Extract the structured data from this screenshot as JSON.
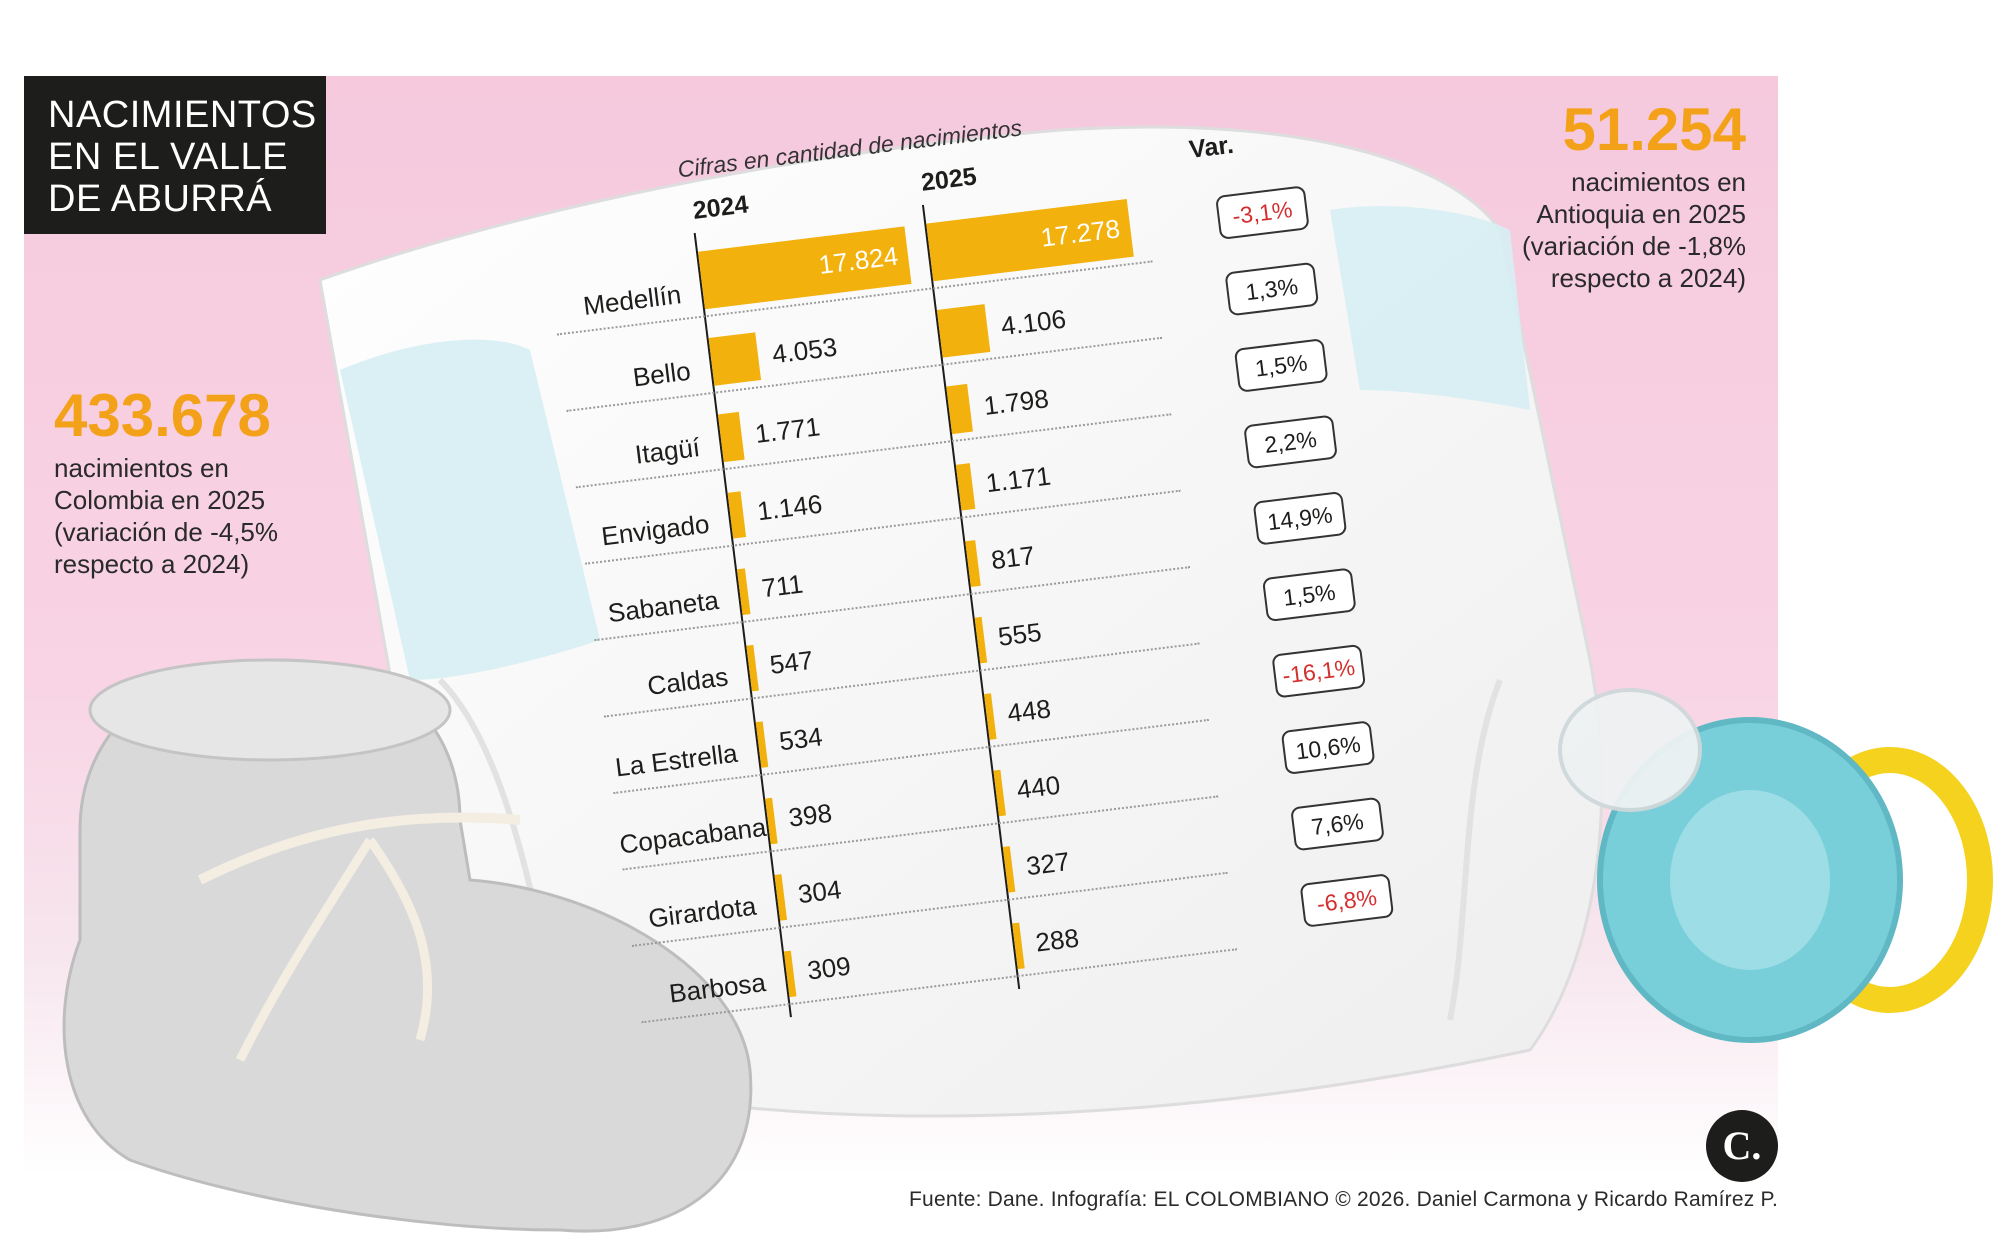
{
  "title": {
    "lines": [
      "NACIMIENTOS",
      "EN EL VALLE",
      "DE ABURRÁ"
    ]
  },
  "left_stat": {
    "value": "433.678",
    "lines": [
      "nacimientos en",
      "Colombia en 2025",
      "(variación de -4,5%",
      "respecto a 2024)"
    ]
  },
  "right_stat": {
    "value": "51.254",
    "lines": [
      "nacimientos en",
      "Antioquia en 2025",
      "(variación de -1,8%",
      "respecto a 2024)"
    ]
  },
  "chart_data": {
    "type": "bar",
    "caption": "Cifras en cantidad de nacimientos",
    "categories": [
      "Medellín",
      "Bello",
      "Itagüí",
      "Envigado",
      "Sabaneta",
      "Caldas",
      "La Estrella",
      "Copacabana",
      "Girardota",
      "Barbosa"
    ],
    "series": [
      {
        "name": "2024",
        "values": [
          17824,
          4053,
          1771,
          1146,
          711,
          547,
          534,
          398,
          304,
          309
        ],
        "labels": [
          "17.824",
          "4.053",
          "1.771",
          "1.146",
          "711",
          "547",
          "534",
          "398",
          "304",
          "309"
        ]
      },
      {
        "name": "2025",
        "values": [
          17278,
          4106,
          1798,
          1171,
          817,
          555,
          448,
          440,
          327,
          288
        ],
        "labels": [
          "17.278",
          "4.106",
          "1.798",
          "1.171",
          "817",
          "555",
          "448",
          "440",
          "327",
          "288"
        ]
      }
    ],
    "variation_header": "Var.",
    "variation": [
      "-3,1%",
      "1,3%",
      "1,5%",
      "2,2%",
      "14,9%",
      "1,5%",
      "-16,1%",
      "10,6%",
      "7,6%",
      "-6,8%"
    ],
    "colors": {
      "bar": "#f2b10c",
      "negative": "#d32f2f"
    }
  },
  "footer": "Fuente: Dane. Infografía: EL COLOMBIANO © 2026. Daniel Carmona y Ricardo Ramírez P.",
  "logo": {
    "text": "C.",
    "icon": "el-colombiano-logo"
  }
}
